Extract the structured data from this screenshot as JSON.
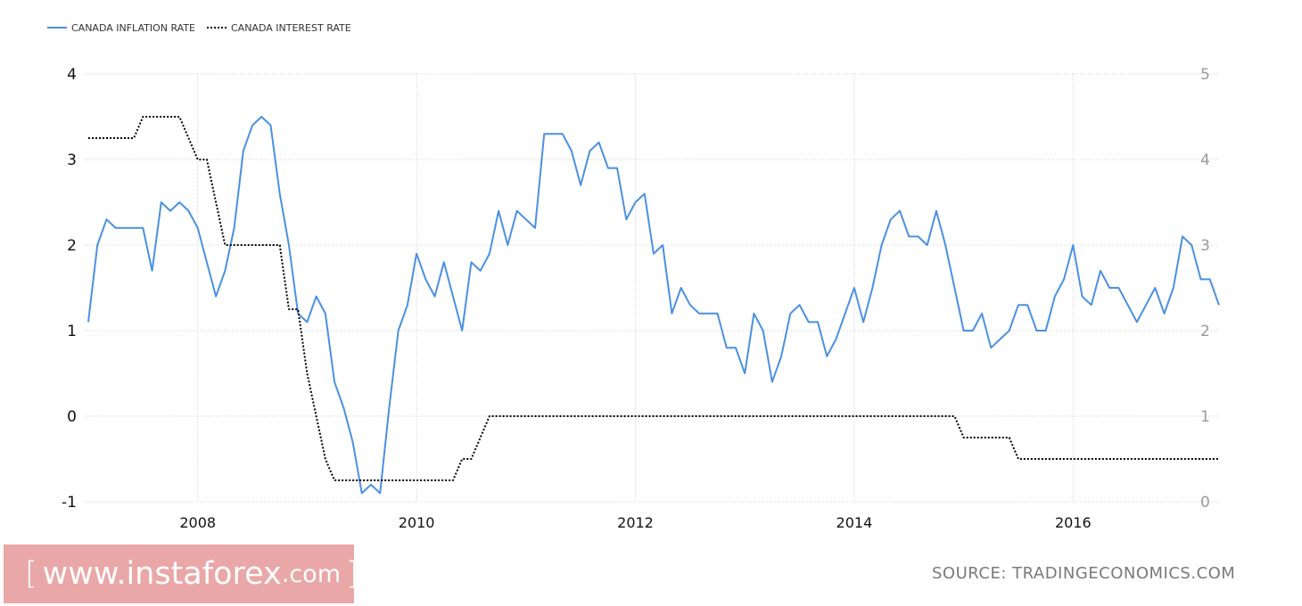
{
  "legend": {
    "inflation_label": "CANADA INFLATION RATE",
    "interest_label": "CANADA INTEREST RATE"
  },
  "watermark": {
    "open_bracket": "[",
    "main": "www.instaforex",
    "suffix": ".com",
    "close_bracket": "]"
  },
  "source_text": "SOURCE: TRADINGECONOMICS.COM",
  "colors": {
    "inflation": "#4a90e2",
    "interest": "#000000",
    "watermark_bg": "#e8a0a0"
  },
  "chart_data": {
    "type": "line",
    "x_ticks": [
      "2008",
      "2010",
      "2012",
      "2014",
      "2016"
    ],
    "left_axis": {
      "ticks": [
        "4",
        "3",
        "2",
        "1",
        "0",
        "-1"
      ],
      "ylim": [
        -1,
        4
      ]
    },
    "right_axis": {
      "ticks": [
        "5",
        "4",
        "3",
        "2",
        "1",
        "0"
      ],
      "ylim": [
        0,
        5
      ]
    },
    "grid": true,
    "legend_placement": "top-left",
    "series": [
      {
        "name": "CANADA INFLATION RATE",
        "axis": "left",
        "style": "solid",
        "x_start": "2007-01",
        "frequency": "monthly",
        "values": [
          1.1,
          2.0,
          2.3,
          2.2,
          2.2,
          2.2,
          2.2,
          1.7,
          2.5,
          2.4,
          2.5,
          2.4,
          2.2,
          1.8,
          1.4,
          1.7,
          2.2,
          3.1,
          3.4,
          3.5,
          3.4,
          2.6,
          2.0,
          1.2,
          1.1,
          1.4,
          1.2,
          0.4,
          0.1,
          -0.3,
          -0.9,
          -0.8,
          -0.9,
          0.1,
          1.0,
          1.3,
          1.9,
          1.6,
          1.4,
          1.8,
          1.4,
          1.0,
          1.8,
          1.7,
          1.9,
          2.4,
          2.0,
          2.4,
          2.3,
          2.2,
          3.3,
          3.3,
          3.3,
          3.1,
          2.7,
          3.1,
          3.2,
          2.9,
          2.9,
          2.3,
          2.5,
          2.6,
          1.9,
          2.0,
          1.2,
          1.5,
          1.3,
          1.2,
          1.2,
          1.2,
          0.8,
          0.8,
          0.5,
          1.2,
          1.0,
          0.4,
          0.7,
          1.2,
          1.3,
          1.1,
          1.1,
          0.7,
          0.9,
          1.2,
          1.5,
          1.1,
          1.5,
          2.0,
          2.3,
          2.4,
          2.1,
          2.1,
          2.0,
          2.4,
          2.0,
          1.5,
          1.0,
          1.0,
          1.2,
          0.8,
          0.9,
          1.0,
          1.3,
          1.3,
          1.0,
          1.0,
          1.4,
          1.6,
          2.0,
          1.4,
          1.3,
          1.7,
          1.5,
          1.5,
          1.3,
          1.1,
          1.3,
          1.5,
          1.2,
          1.5,
          2.1,
          2.0,
          1.6,
          1.6,
          1.3
        ]
      },
      {
        "name": "CANADA INTEREST RATE",
        "axis": "right",
        "style": "dotted",
        "x_start": "2007-01",
        "frequency": "monthly",
        "values": [
          4.25,
          4.25,
          4.25,
          4.25,
          4.25,
          4.25,
          4.5,
          4.5,
          4.5,
          4.5,
          4.5,
          4.25,
          4.0,
          4.0,
          3.5,
          3.0,
          3.0,
          3.0,
          3.0,
          3.0,
          3.0,
          3.0,
          2.25,
          2.25,
          1.5,
          1.0,
          0.5,
          0.25,
          0.25,
          0.25,
          0.25,
          0.25,
          0.25,
          0.25,
          0.25,
          0.25,
          0.25,
          0.25,
          0.25,
          0.25,
          0.25,
          0.5,
          0.5,
          0.75,
          1.0,
          1.0,
          1.0,
          1.0,
          1.0,
          1.0,
          1.0,
          1.0,
          1.0,
          1.0,
          1.0,
          1.0,
          1.0,
          1.0,
          1.0,
          1.0,
          1.0,
          1.0,
          1.0,
          1.0,
          1.0,
          1.0,
          1.0,
          1.0,
          1.0,
          1.0,
          1.0,
          1.0,
          1.0,
          1.0,
          1.0,
          1.0,
          1.0,
          1.0,
          1.0,
          1.0,
          1.0,
          1.0,
          1.0,
          1.0,
          1.0,
          1.0,
          1.0,
          1.0,
          1.0,
          1.0,
          1.0,
          1.0,
          1.0,
          1.0,
          1.0,
          1.0,
          0.75,
          0.75,
          0.75,
          0.75,
          0.75,
          0.75,
          0.5,
          0.5,
          0.5,
          0.5,
          0.5,
          0.5,
          0.5,
          0.5,
          0.5,
          0.5,
          0.5,
          0.5,
          0.5,
          0.5,
          0.5,
          0.5,
          0.5,
          0.5,
          0.5,
          0.5,
          0.5,
          0.5,
          0.5
        ]
      }
    ]
  }
}
